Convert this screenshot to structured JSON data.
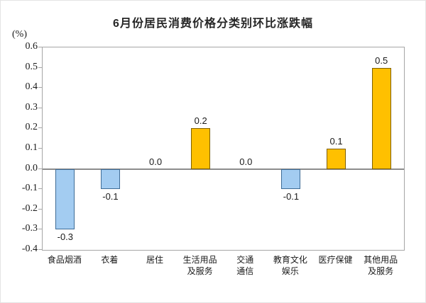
{
  "title": "6月份居民消费价格分类别环比涨跌幅",
  "y_axis_unit": "(%)",
  "chart_data": {
    "type": "bar",
    "title": "6月份居民消费价格分类别环比涨跌幅",
    "ylabel": "(%)",
    "xlabel": "",
    "grid": false,
    "legend": "none",
    "categories": [
      "食品烟酒",
      "衣着",
      "居住",
      "生活用品\n及服务",
      "交通\n通信",
      "教育文化\n娱乐",
      "医疗保健",
      "其他用品\n及服务"
    ],
    "values": [
      -0.3,
      -0.1,
      0.0,
      0.2,
      0.0,
      -0.1,
      0.1,
      0.5
    ],
    "value_labels": [
      "-0.3",
      "-0.1",
      "0.0",
      "0.2",
      "0.0",
      "-0.1",
      "0.1",
      "0.5"
    ],
    "ylim": [
      -0.4,
      0.6
    ],
    "ytick_step": 0.1,
    "yticks": [
      "0.6",
      "0.5",
      "0.4",
      "0.3",
      "0.2",
      "0.1",
      "0.0",
      "-0.1",
      "-0.2",
      "-0.3",
      "-0.4"
    ],
    "colors": {
      "positive_fill": "#FFC000",
      "positive_border": "#7F6000",
      "negative_fill": "#A3CCF1",
      "negative_border": "#3E6C96",
      "plot_border": "#A6A6A6",
      "zero_line": "#8C8C8C"
    }
  }
}
